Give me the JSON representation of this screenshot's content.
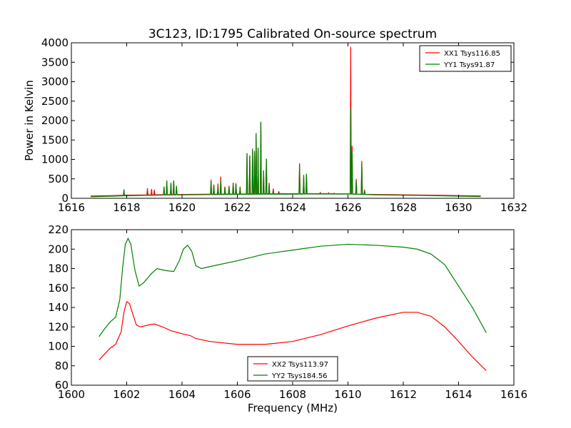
{
  "chart_data": [
    {
      "type": "line",
      "title": "3C123, ID:1795 Calibrated On-source spectrum",
      "xlabel": "",
      "ylabel": "Power in Kelvin",
      "xlim": [
        1616,
        1632
      ],
      "ylim": [
        0,
        4000
      ],
      "xticks": [
        1616,
        1618,
        1620,
        1622,
        1624,
        1626,
        1628,
        1630,
        1632
      ],
      "yticks": [
        0,
        500,
        1000,
        1500,
        2000,
        2500,
        3000,
        3500,
        4000
      ],
      "legend": "top-right",
      "grid": false,
      "series": [
        {
          "name": "XX1 Tsys116.85",
          "color": "#ff0000",
          "points": [
            [
              1616.7,
              60
            ],
            [
              1617.5,
              70
            ],
            [
              1618,
              80
            ],
            [
              1619,
              90
            ],
            [
              1620,
              100
            ],
            [
              1621,
              105
            ],
            [
              1622,
              110
            ],
            [
              1623,
              115
            ],
            [
              1624,
              118
            ],
            [
              1625,
              118
            ],
            [
              1626,
              115
            ],
            [
              1626.5,
              105
            ],
            [
              1627,
              100
            ],
            [
              1628,
              90
            ],
            [
              1629,
              80
            ],
            [
              1630,
              70
            ],
            [
              1630.8,
              60
            ]
          ],
          "spikes": [
            [
              1617.9,
              160
            ],
            [
              1618.75,
              260
            ],
            [
              1618.9,
              240
            ],
            [
              1619.0,
              220
            ],
            [
              1619.35,
              300
            ],
            [
              1619.45,
              440
            ],
            [
              1619.6,
              380
            ],
            [
              1619.7,
              440
            ],
            [
              1619.8,
              300
            ],
            [
              1621.05,
              480
            ],
            [
              1621.15,
              350
            ],
            [
              1621.3,
              380
            ],
            [
              1621.4,
              560
            ],
            [
              1621.55,
              300
            ],
            [
              1621.7,
              320
            ],
            [
              1621.85,
              400
            ],
            [
              1621.95,
              390
            ],
            [
              1622.1,
              300
            ],
            [
              1622.35,
              1150
            ],
            [
              1622.45,
              1100
            ],
            [
              1622.55,
              1250
            ],
            [
              1622.62,
              1200
            ],
            [
              1622.68,
              1650
            ],
            [
              1622.75,
              1300
            ],
            [
              1622.85,
              1950
            ],
            [
              1622.95,
              700
            ],
            [
              1623.05,
              1000
            ],
            [
              1623.15,
              400
            ],
            [
              1623.3,
              250
            ],
            [
              1623.5,
              180
            ],
            [
              1624.25,
              900
            ],
            [
              1624.4,
              560
            ],
            [
              1624.5,
              620
            ],
            [
              1625.0,
              150
            ],
            [
              1625.3,
              140
            ],
            [
              1625.5,
              130
            ],
            [
              1626.1,
              3900
            ],
            [
              1626.15,
              1350
            ],
            [
              1626.3,
              500
            ],
            [
              1626.5,
              960
            ],
            [
              1626.6,
              220
            ]
          ]
        },
        {
          "name": "YY1 Tsys91.87",
          "color": "#008000",
          "points": [
            [
              1616.7,
              40
            ],
            [
              1617.5,
              55
            ],
            [
              1618,
              65
            ],
            [
              1619,
              80
            ],
            [
              1620,
              90
            ],
            [
              1621,
              95
            ],
            [
              1622,
              100
            ],
            [
              1623,
              105
            ],
            [
              1624,
              108
            ],
            [
              1625,
              110
            ],
            [
              1626,
              110
            ],
            [
              1626.5,
              100
            ],
            [
              1627,
              90
            ],
            [
              1628,
              80
            ],
            [
              1629,
              70
            ],
            [
              1630,
              55
            ],
            [
              1630.8,
              45
            ]
          ],
          "spikes": [
            [
              1617.9,
              230
            ],
            [
              1618.75,
              120
            ],
            [
              1619.35,
              300
            ],
            [
              1619.45,
              460
            ],
            [
              1619.6,
              400
            ],
            [
              1619.7,
              460
            ],
            [
              1619.8,
              320
            ],
            [
              1621.05,
              440
            ],
            [
              1621.15,
              340
            ],
            [
              1621.3,
              300
            ],
            [
              1621.4,
              460
            ],
            [
              1621.55,
              280
            ],
            [
              1621.7,
              300
            ],
            [
              1621.85,
              390
            ],
            [
              1621.95,
              370
            ],
            [
              1622.1,
              260
            ],
            [
              1622.35,
              1160
            ],
            [
              1622.45,
              1100
            ],
            [
              1622.55,
              1280
            ],
            [
              1622.62,
              1220
            ],
            [
              1622.68,
              1680
            ],
            [
              1622.75,
              1300
            ],
            [
              1622.85,
              1970
            ],
            [
              1622.95,
              720
            ],
            [
              1623.05,
              1020
            ],
            [
              1623.15,
              350
            ],
            [
              1623.3,
              200
            ],
            [
              1624.25,
              860
            ],
            [
              1624.4,
              600
            ],
            [
              1624.5,
              630
            ],
            [
              1625.0,
              130
            ],
            [
              1625.3,
              120
            ],
            [
              1626.1,
              2300
            ],
            [
              1626.15,
              1200
            ],
            [
              1626.3,
              460
            ],
            [
              1626.5,
              900
            ],
            [
              1626.6,
              200
            ]
          ]
        }
      ]
    },
    {
      "type": "line",
      "title": "",
      "xlabel": "Frequency (MHz)",
      "ylabel": "",
      "xlim": [
        1600,
        1616
      ],
      "ylim": [
        60,
        220
      ],
      "xticks": [
        1600,
        1602,
        1604,
        1606,
        1608,
        1610,
        1612,
        1614,
        1616
      ],
      "yticks": [
        60,
        80,
        100,
        120,
        140,
        160,
        180,
        200,
        220
      ],
      "legend": "bottom-center",
      "grid": false,
      "series": [
        {
          "name": "XX2 Tsys113.97",
          "color": "#ff0000",
          "points": [
            [
              1601.0,
              86
            ],
            [
              1601.2,
              92
            ],
            [
              1601.4,
              98
            ],
            [
              1601.6,
              102
            ],
            [
              1601.8,
              115
            ],
            [
              1601.9,
              135
            ],
            [
              1602.0,
              146
            ],
            [
              1602.1,
              144
            ],
            [
              1602.2,
              135
            ],
            [
              1602.35,
              122
            ],
            [
              1602.5,
              120
            ],
            [
              1602.8,
              122
            ],
            [
              1603.0,
              123
            ],
            [
              1603.3,
              120
            ],
            [
              1603.6,
              116
            ],
            [
              1604.0,
              113
            ],
            [
              1604.3,
              111
            ],
            [
              1604.5,
              108
            ],
            [
              1605.0,
              105
            ],
            [
              1606.0,
              102
            ],
            [
              1607.0,
              102
            ],
            [
              1608.0,
              105
            ],
            [
              1609.0,
              112
            ],
            [
              1610.0,
              121
            ],
            [
              1611.0,
              129
            ],
            [
              1612.0,
              135
            ],
            [
              1612.5,
              135
            ],
            [
              1613.0,
              131
            ],
            [
              1613.5,
              120
            ],
            [
              1614.0,
              105
            ],
            [
              1614.5,
              89
            ],
            [
              1615.0,
              75
            ]
          ]
        },
        {
          "name": "YY2 Tsys184.56",
          "color": "#008000",
          "points": [
            [
              1601.0,
              110
            ],
            [
              1601.2,
              118
            ],
            [
              1601.4,
              125
            ],
            [
              1601.6,
              130
            ],
            [
              1601.75,
              148
            ],
            [
              1601.85,
              180
            ],
            [
              1601.95,
              205
            ],
            [
              1602.05,
              211
            ],
            [
              1602.15,
              205
            ],
            [
              1602.3,
              178
            ],
            [
              1602.45,
              162
            ],
            [
              1602.6,
              165
            ],
            [
              1602.9,
              175
            ],
            [
              1603.1,
              180
            ],
            [
              1603.4,
              178
            ],
            [
              1603.7,
              177
            ],
            [
              1603.9,
              188
            ],
            [
              1604.05,
              200
            ],
            [
              1604.2,
              204
            ],
            [
              1604.35,
              198
            ],
            [
              1604.5,
              183
            ],
            [
              1604.7,
              180
            ],
            [
              1605.0,
              182
            ],
            [
              1606.0,
              188
            ],
            [
              1607.0,
              195
            ],
            [
              1608.0,
              199
            ],
            [
              1609.0,
              203
            ],
            [
              1610.0,
              205
            ],
            [
              1611.0,
              204
            ],
            [
              1612.0,
              202
            ],
            [
              1612.5,
              200
            ],
            [
              1613.0,
              195
            ],
            [
              1613.5,
              184
            ],
            [
              1614.0,
              162
            ],
            [
              1614.5,
              140
            ],
            [
              1615.0,
              114
            ]
          ]
        }
      ]
    }
  ]
}
